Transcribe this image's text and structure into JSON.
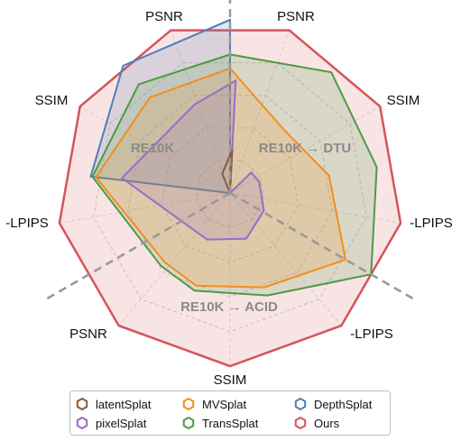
{
  "chart_data": {
    "type": "radar",
    "axes": [
      "PSNR",
      "SSIM",
      "-LPIPS",
      "PSNR",
      "SSIM",
      "-LPIPS",
      "PSNR",
      "SSIM",
      "-LPIPS"
    ],
    "axis_order_note": "",
    "groups": [
      "RE10K",
      "RE10K→DTU",
      "RE10K→ACID"
    ],
    "group_labels": [
      "RE10K",
      "RE10K → DTU",
      "RE10K → ACID"
    ],
    "rlim": [
      0,
      1
    ],
    "grid_levels": [
      0.2,
      0.4,
      0.6,
      0.8
    ],
    "series": [
      {
        "name": "latentSplat",
        "color": "#8c5a34",
        "fill": false,
        "axis_values": [
          null,
          null,
          null,
          null,
          null,
          null,
          null,
          null,
          null
        ],
        "path": [
          [
            0.0,
            0.0
          ],
          [
            0.25,
            0.05
          ],
          [
            0.12,
            5.9
          ],
          [
            0.0,
            0.0
          ]
        ]
      },
      {
        "name": "pixelSplat",
        "color": "#9b6bc8",
        "fill": true,
        "axis_values": [
          0.68,
          0.56,
          0.64,
          0.19,
          0.22,
          0.2,
          0.28,
          null,
          null
        ],
        "path": [
          [
            0.0,
            0.0
          ],
          [
            0.65,
            0.05
          ],
          [
            0.55,
            5.9
          ],
          [
            0.63,
            4.85
          ],
          [
            0.3,
            3.6
          ],
          [
            0.28,
            2.8
          ],
          [
            0.22,
            2.05
          ],
          [
            0.18,
            1.2
          ],
          [
            0.17,
            0.8
          ],
          [
            0.0,
            0.0
          ]
        ]
      },
      {
        "name": "MVSplat",
        "color": "#f28e1c",
        "fill": true,
        "axis_values": [
          0.72,
          0.73,
          0.78,
          0.48,
          0.58,
          0.77,
          0.58,
          null,
          null
        ],
        "path": [
          [
            0.72,
            0.0
          ],
          [
            0.48,
            0.698
          ],
          [
            0.58,
            1.396
          ],
          [
            0.77,
            2.094
          ],
          [
            0.58,
            2.792
          ],
          [
            0.57,
            3.49
          ],
          [
            0.55,
            3.9
          ],
          [
            0.78,
            4.83
          ],
          [
            0.72,
            5.585
          ],
          [
            0.72,
            0.0
          ]
        ]
      },
      {
        "name": "TransSplat",
        "color": "#4f9a44",
        "fill": true,
        "axis_values": [
          0.79,
          0.82,
          0.8,
          0.91,
          0.86,
          0.94,
          0.63,
          null,
          null
        ],
        "path": [
          [
            0.8,
            0.0
          ],
          [
            0.91,
            0.698
          ],
          [
            0.86,
            1.396
          ],
          [
            0.94,
            2.094
          ],
          [
            0.63,
            2.792
          ],
          [
            0.6,
            3.49
          ],
          [
            0.58,
            3.9
          ],
          [
            0.8,
            4.83
          ],
          [
            0.82,
            5.585
          ],
          [
            0.8,
            0.0
          ]
        ]
      },
      {
        "name": "DepthSplat",
        "color": "#4f7fb3",
        "fill": true,
        "axis_values": [
          1.0,
          0.96,
          0.82,
          null,
          null,
          null,
          null,
          null,
          null
        ],
        "path": [
          [
            0.0,
            0.0
          ],
          [
            1.0,
            6.283
          ],
          [
            0.96,
            5.585
          ],
          [
            0.81,
            4.83
          ],
          [
            0.0,
            0.0
          ]
        ]
      },
      {
        "name": "Ours",
        "color": "#d5545b",
        "fill": true,
        "axis_values": [
          1,
          1,
          1,
          1,
          1,
          1,
          1,
          1,
          1
        ],
        "path": []
      }
    ]
  },
  "legend": [
    {
      "name": "latentSplat",
      "color": "#8c5a34"
    },
    {
      "name": "MVSplat",
      "color": "#f28e1c"
    },
    {
      "name": "DepthSplat",
      "color": "#4f7fb3"
    },
    {
      "name": "pixelSplat",
      "color": "#9b6bc8"
    },
    {
      "name": "TransSplat",
      "color": "#4f9a44"
    },
    {
      "name": "Ours",
      "color": "#d5545b"
    }
  ]
}
